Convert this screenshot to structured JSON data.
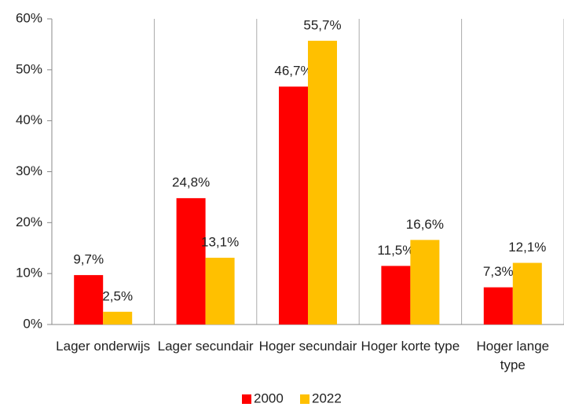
{
  "chart_data": {
    "type": "bar",
    "categories": [
      "Lager onderwijs",
      "Lager secundair",
      "Hoger secundair",
      "Hoger korte type",
      "Hoger lange type"
    ],
    "series": [
      {
        "name": "2000",
        "color": "#ff0000",
        "values": [
          9.7,
          24.8,
          46.7,
          11.5,
          7.3
        ],
        "value_labels": [
          "9,7%",
          "24,8%",
          "46,7%",
          "11,5%",
          "7,3%"
        ]
      },
      {
        "name": "2022",
        "color": "#ffc000",
        "values": [
          2.5,
          13.1,
          55.7,
          16.6,
          12.1
        ],
        "value_labels": [
          "2,5%",
          "13,1%",
          "55,7%",
          "16,6%",
          "12,1%"
        ]
      }
    ],
    "ylim": [
      0,
      60
    ],
    "yticks": [
      {
        "value": 0,
        "label": "0%"
      },
      {
        "value": 10,
        "label": "10%"
      },
      {
        "value": 20,
        "label": "20%"
      },
      {
        "value": 30,
        "label": "30%"
      },
      {
        "value": 40,
        "label": "40%"
      },
      {
        "value": 50,
        "label": "50%"
      },
      {
        "value": 60,
        "label": "60%"
      }
    ],
    "legend": "bottom"
  }
}
